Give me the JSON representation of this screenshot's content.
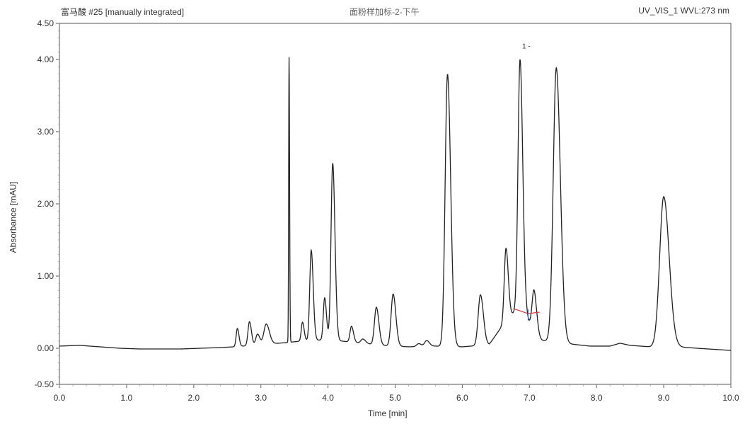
{
  "header": {
    "left": "富马酸 #25 [manually integrated]",
    "center": "面粉样加标-2-下午",
    "right": "UV_VIS_1 WVL:273 nm"
  },
  "chart_data": {
    "type": "line",
    "title": "",
    "xlabel": "Time [min]",
    "ylabel": "Absorbance [mAU]",
    "xlim": [
      0.0,
      10.0
    ],
    "ylim": [
      -0.5,
      4.5
    ],
    "xticks": [
      "0.0",
      "1.0",
      "2.0",
      "3.0",
      "4.0",
      "5.0",
      "6.0",
      "7.0",
      "8.0",
      "9.0",
      "10.0"
    ],
    "yticks": [
      "-0.50",
      "0.00",
      "1.00",
      "2.00",
      "3.00",
      "4.00",
      "4.50"
    ],
    "peak_label": "1 -",
    "line_color": "#222222",
    "integration_color": "#e03030",
    "baseline": [
      [
        0.0,
        0.03
      ],
      [
        0.3,
        0.04
      ],
      [
        0.6,
        0.02
      ],
      [
        0.9,
        0.0
      ],
      [
        1.2,
        -0.01
      ],
      [
        1.5,
        -0.01
      ],
      [
        1.8,
        -0.01
      ],
      [
        2.1,
        0.0
      ],
      [
        2.4,
        0.01
      ],
      [
        2.6,
        0.02
      ],
      [
        3.0,
        0.05
      ],
      [
        3.4,
        0.08
      ],
      [
        3.6,
        0.1
      ],
      [
        4.0,
        0.12
      ],
      [
        4.4,
        0.08
      ],
      [
        4.8,
        0.04
      ],
      [
        5.2,
        0.02
      ],
      [
        5.6,
        0.03
      ],
      [
        6.0,
        0.02
      ],
      [
        6.4,
        0.05
      ],
      [
        6.7,
        0.45
      ],
      [
        6.8,
        0.5
      ],
      [
        6.95,
        0.45
      ],
      [
        7.1,
        0.12
      ],
      [
        7.6,
        0.06
      ],
      [
        7.9,
        0.03
      ],
      [
        8.2,
        0.03
      ],
      [
        8.35,
        0.07
      ],
      [
        8.5,
        0.04
      ],
      [
        8.8,
        0.02
      ],
      [
        9.2,
        0.02
      ],
      [
        9.5,
        0.0
      ],
      [
        10.0,
        -0.03
      ]
    ],
    "peaks": [
      {
        "rt": 2.65,
        "height": 0.25,
        "width": 0.018
      },
      {
        "rt": 2.83,
        "height": 0.33,
        "width": 0.022
      },
      {
        "rt": 2.95,
        "height": 0.15,
        "width": 0.025
      },
      {
        "rt": 3.08,
        "height": 0.28,
        "width": 0.035
      },
      {
        "rt": 3.42,
        "height": 3.95,
        "width": 0.006
      },
      {
        "rt": 3.62,
        "height": 0.26,
        "width": 0.018
      },
      {
        "rt": 3.75,
        "height": 1.25,
        "width": 0.022
      },
      {
        "rt": 3.95,
        "height": 0.58,
        "width": 0.02
      },
      {
        "rt": 4.07,
        "height": 2.45,
        "width": 0.025
      },
      {
        "rt": 4.35,
        "height": 0.22,
        "width": 0.022
      },
      {
        "rt": 4.52,
        "height": 0.06,
        "width": 0.03
      },
      {
        "rt": 4.72,
        "height": 0.52,
        "width": 0.028
      },
      {
        "rt": 4.97,
        "height": 0.72,
        "width": 0.03
      },
      {
        "rt": 5.35,
        "height": 0.04,
        "width": 0.03
      },
      {
        "rt": 5.47,
        "height": 0.08,
        "width": 0.03
      },
      {
        "rt": 5.78,
        "height": 3.77,
        "width": 0.035
      },
      {
        "rt": 6.27,
        "height": 0.7,
        "width": 0.033
      },
      {
        "rt": 6.65,
        "height": 1.0,
        "width": 0.025
      },
      {
        "rt": 6.86,
        "height": 3.52,
        "width": 0.03
      },
      {
        "rt": 7.07,
        "height": 0.62,
        "width": 0.03
      },
      {
        "rt": 7.4,
        "height": 3.8,
        "width": 0.045
      },
      {
        "rt": 9.0,
        "height": 2.08,
        "width": 0.06
      }
    ],
    "integration_segment": [
      [
        6.76,
        0.55
      ],
      [
        6.98,
        0.48
      ],
      [
        7.15,
        0.5
      ]
    ],
    "peak_label_x": 6.86
  }
}
